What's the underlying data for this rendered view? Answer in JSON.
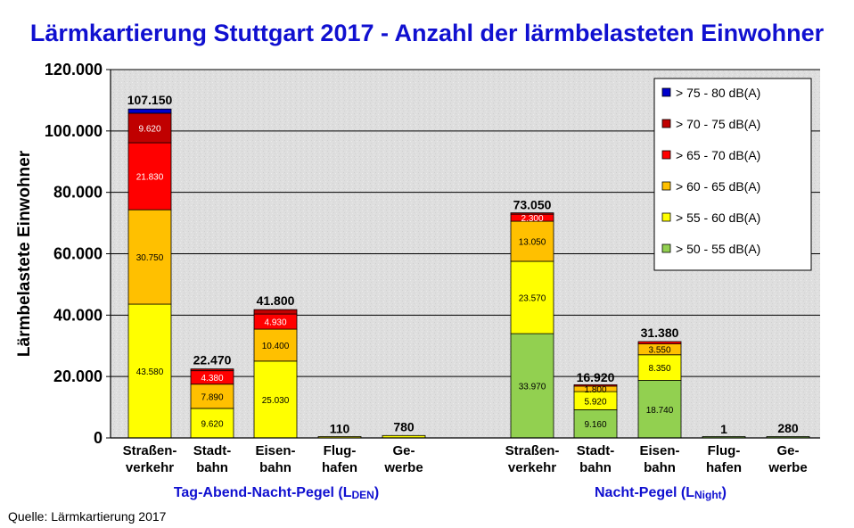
{
  "chart_data": {
    "type": "bar",
    "stacked": true,
    "title": "Lärmkartierung Stuttgart 2017 - Anzahl der lärmbelasteten Einwohner",
    "ylabel": "Lärmbelastete Einwohner",
    "ylim": [
      0,
      120000
    ],
    "yticks": [
      "0",
      "20.000",
      "40.000",
      "60.000",
      "80.000",
      "100.000",
      "120.000"
    ],
    "grid": true,
    "legend_position": "top-right",
    "source": "Quelle: Lärmkartierung 2017",
    "groups": [
      {
        "label_main": "Tag-Abend-Nacht-Pegel (L",
        "label_sub": "DEN",
        "label_end": ")"
      },
      {
        "label_main": "Nacht-Pegel (L",
        "label_sub": "Night",
        "label_end": ")"
      }
    ],
    "series": [
      {
        "name": "> 50 - 55 dB(A)",
        "color": "#92d050",
        "text_color": "#000000"
      },
      {
        "name": "> 55 - 60 dB(A)",
        "color": "#ffff00",
        "text_color": "#000000"
      },
      {
        "name": "> 60 - 65 dB(A)",
        "color": "#ffc000",
        "text_color": "#000000"
      },
      {
        "name": "> 65 - 70 dB(A)",
        "color": "#ff0000",
        "text_color": "#ffffff"
      },
      {
        "name": "> 70 - 75 dB(A)",
        "color": "#c00000",
        "text_color": "#ffffff"
      },
      {
        "name": "> 75 - 80 dB(A)",
        "color": "#0000cc",
        "text_color": "#ffffff"
      }
    ],
    "bars": [
      {
        "group": 0,
        "category": [
          "Straßen-",
          "verkehr"
        ],
        "total": "107.150",
        "segments": [
          {
            "series": 1,
            "value": 43580,
            "label": "43.580"
          },
          {
            "series": 2,
            "value": 30750,
            "label": "30.750"
          },
          {
            "series": 3,
            "value": 21830,
            "label": "21.830"
          },
          {
            "series": 4,
            "value": 9620,
            "label": "9.620"
          },
          {
            "series": 5,
            "value": 1370,
            "label": ""
          }
        ]
      },
      {
        "group": 0,
        "category": [
          "Stadt-",
          "bahn"
        ],
        "total": "22.470",
        "segments": [
          {
            "series": 1,
            "value": 9620,
            "label": "9.620"
          },
          {
            "series": 2,
            "value": 7890,
            "label": "7.890"
          },
          {
            "series": 3,
            "value": 4380,
            "label": "4.380"
          },
          {
            "series": 4,
            "value": 580,
            "label": ""
          }
        ]
      },
      {
        "group": 0,
        "category": [
          "Eisen-",
          "bahn"
        ],
        "total": "41.800",
        "segments": [
          {
            "series": 1,
            "value": 25030,
            "label": "25.030"
          },
          {
            "series": 2,
            "value": 10400,
            "label": "10.400"
          },
          {
            "series": 3,
            "value": 4930,
            "label": "4.930"
          },
          {
            "series": 4,
            "value": 1440,
            "label": ""
          }
        ]
      },
      {
        "group": 0,
        "category": [
          "Flug-",
          "hafen"
        ],
        "total": "110",
        "segments": [
          {
            "series": 1,
            "value": 110,
            "label": ""
          }
        ]
      },
      {
        "group": 0,
        "category": [
          "Ge-",
          "werbe"
        ],
        "total": "780",
        "segments": [
          {
            "series": 1,
            "value": 780,
            "label": ""
          }
        ]
      },
      {
        "group": 1,
        "category": [
          "Straßen-",
          "verkehr"
        ],
        "total": "73.050",
        "segments": [
          {
            "series": 0,
            "value": 33970,
            "label": "33.970"
          },
          {
            "series": 1,
            "value": 23570,
            "label": "23.570"
          },
          {
            "series": 2,
            "value": 13050,
            "label": "13.050"
          },
          {
            "series": 3,
            "value": 2300,
            "label": "2.300"
          },
          {
            "series": 4,
            "value": 160,
            "label": ""
          }
        ]
      },
      {
        "group": 1,
        "category": [
          "Stadt-",
          "bahn"
        ],
        "total": "16.920",
        "segments": [
          {
            "series": 0,
            "value": 9160,
            "label": "9.160"
          },
          {
            "series": 1,
            "value": 5920,
            "label": "5.920"
          },
          {
            "series": 2,
            "value": 1800,
            "label": "1.800"
          },
          {
            "series": 3,
            "value": 40,
            "label": ""
          }
        ]
      },
      {
        "group": 1,
        "category": [
          "Eisen-",
          "bahn"
        ],
        "total": "31.380",
        "segments": [
          {
            "series": 0,
            "value": 18740,
            "label": "18.740"
          },
          {
            "series": 1,
            "value": 8350,
            "label": "8.350"
          },
          {
            "series": 2,
            "value": 3550,
            "label": "3.550"
          },
          {
            "series": 3,
            "value": 740,
            "label": ""
          }
        ]
      },
      {
        "group": 1,
        "category": [
          "Flug-",
          "hafen"
        ],
        "total": "1",
        "segments": [
          {
            "series": 0,
            "value": 1,
            "label": ""
          }
        ]
      },
      {
        "group": 1,
        "category": [
          "Ge-",
          "werbe"
        ],
        "total": "280",
        "segments": [
          {
            "series": 0,
            "value": 280,
            "label": ""
          }
        ]
      }
    ]
  }
}
